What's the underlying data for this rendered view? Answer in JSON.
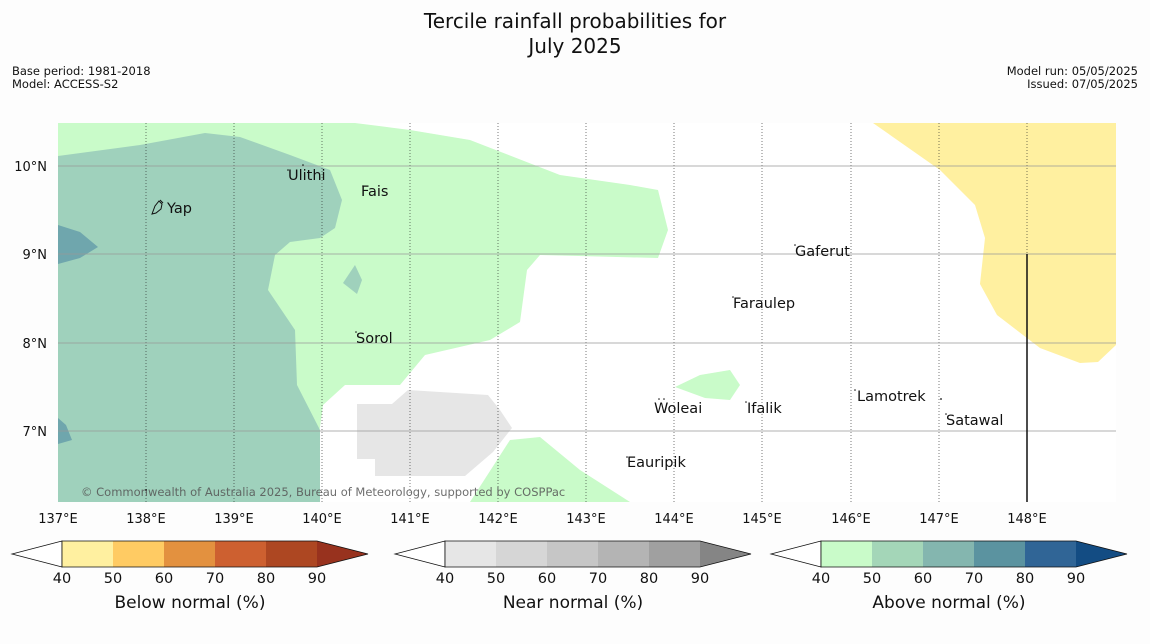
{
  "title": {
    "line1": "Tercile rainfall probabilities for",
    "line2": "July 2025"
  },
  "meta_left": {
    "base_period": "Base period: 1981-2018",
    "model": "Model: ACCESS-S2"
  },
  "meta_right": {
    "model_run": "Model run: 05/05/2025",
    "issued": "Issued: 07/05/2025"
  },
  "map": {
    "lon_labels": [
      "137°E",
      "138°E",
      "139°E",
      "140°E",
      "141°E",
      "142°E",
      "143°E",
      "144°E",
      "145°E",
      "146°E",
      "147°E",
      "148°E"
    ],
    "lat_labels": [
      "10°N",
      "9°N",
      "8°N",
      "7°N"
    ],
    "places": [
      "Ulithi",
      "Fais",
      "Yap",
      "Gaferut",
      "Faraulep",
      "Sorol",
      "Lamotrek",
      "Woleai",
      "Ifalik",
      "Satawal",
      "Eauripik"
    ],
    "copyright": "© Commonwealth of Australia 2025, Bureau of Meteorology, supported by COSPPac",
    "colors": {
      "above_50": "#c9fbc9",
      "above_60_70": "#9fd1bc",
      "above_70_80": "#6fa6ad",
      "near_normal": "#e6e6e6",
      "below_40_50": "#fff0a0"
    }
  },
  "colorbars": [
    {
      "label": "Below normal (%)",
      "ticks": [
        "40",
        "50",
        "60",
        "70",
        "80",
        "90"
      ],
      "colors": [
        "#fff0a0",
        "#ffcb63",
        "#e3913f",
        "#cd6030",
        "#ad4722",
        "#98321e"
      ]
    },
    {
      "label": "Near normal (%)",
      "ticks": [
        "40",
        "50",
        "60",
        "70",
        "80",
        "90"
      ],
      "colors": [
        "#e6e6e6",
        "#d6d6d6",
        "#c6c6c6",
        "#b4b4b4",
        "#a0a0a0",
        "#858585"
      ]
    },
    {
      "label": "Above normal (%)",
      "ticks": [
        "40",
        "50",
        "60",
        "70",
        "80",
        "90"
      ],
      "colors": [
        "#c9fbc9",
        "#a4d6b8",
        "#84b6af",
        "#5b93a0",
        "#306596",
        "#134c83"
      ]
    }
  ]
}
